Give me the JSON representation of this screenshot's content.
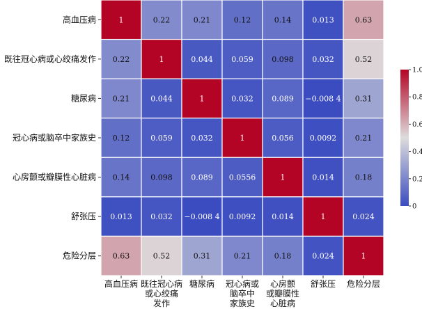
{
  "chart_data": {
    "type": "heatmap",
    "row_labels": [
      "高血压病",
      "既往冠心病或心绞痛发作",
      "糖尿病",
      "冠心病或脑卒中家族史",
      "心房颤或瓣膜性心脏病",
      "舒张压",
      "危险分层"
    ],
    "col_labels": [
      [
        "高血压病"
      ],
      [
        "既往冠心病",
        "或心绞痛",
        "发作"
      ],
      [
        "糖尿病"
      ],
      [
        "冠心病或",
        "脑卒中",
        "家族史"
      ],
      [
        "心房颤",
        "或瓣膜性",
        "心脏病"
      ],
      [
        "舒张压"
      ],
      [
        "危险分层"
      ]
    ],
    "values": [
      [
        1,
        0.22,
        0.21,
        0.12,
        0.14,
        0.013,
        0.63
      ],
      [
        0.22,
        1,
        0.044,
        0.059,
        0.098,
        0.032,
        0.52
      ],
      [
        0.21,
        0.044,
        1,
        0.032,
        0.089,
        -0.0084,
        0.31
      ],
      [
        0.12,
        0.059,
        0.032,
        1,
        0.056,
        0.0092,
        0.21
      ],
      [
        0.14,
        0.098,
        0.089,
        0.0556,
        1,
        0.014,
        0.18
      ],
      [
        0.013,
        0.032,
        -0.0084,
        0.0092,
        0.014,
        1,
        0.024
      ],
      [
        0.63,
        0.52,
        0.31,
        0.21,
        0.18,
        0.024,
        1
      ]
    ],
    "cell_labels": [
      [
        "1",
        "0.22",
        "0.21",
        "0.12",
        "0.14",
        "0.013",
        "0.63"
      ],
      [
        "0.22",
        "1",
        "0.044",
        "0.059",
        "0.098",
        "0.032",
        "0.52"
      ],
      [
        "0.21",
        "0.044",
        "1",
        "0.032",
        "0.089",
        "−0.008 4",
        "0.31"
      ],
      [
        "0.12",
        "0.059",
        "0.032",
        "1",
        "0.056",
        "0.0092",
        "0.21"
      ],
      [
        "0.14",
        "0.098",
        "0.089",
        "0.0556",
        "1",
        "0.014",
        "0.18"
      ],
      [
        "0.013",
        "0.032",
        "−0.008 4",
        "0.0092",
        "0.014",
        "1",
        "0.024"
      ],
      [
        "0.63",
        "0.52",
        "0.31",
        "0.21",
        "0.18",
        "0.024",
        "1"
      ]
    ],
    "colorbar": {
      "range": [
        0,
        1
      ],
      "ticks": [
        0,
        0.2,
        0.4,
        0.6,
        0.8,
        1.0
      ],
      "tick_labels": [
        "0",
        "0.2",
        "0.4",
        "0.6",
        "0.8",
        "1.0"
      ]
    },
    "colormap": [
      "#3b4cc0",
      "#dddcdc",
      "#b40426"
    ],
    "grid": true,
    "legend": "right"
  }
}
